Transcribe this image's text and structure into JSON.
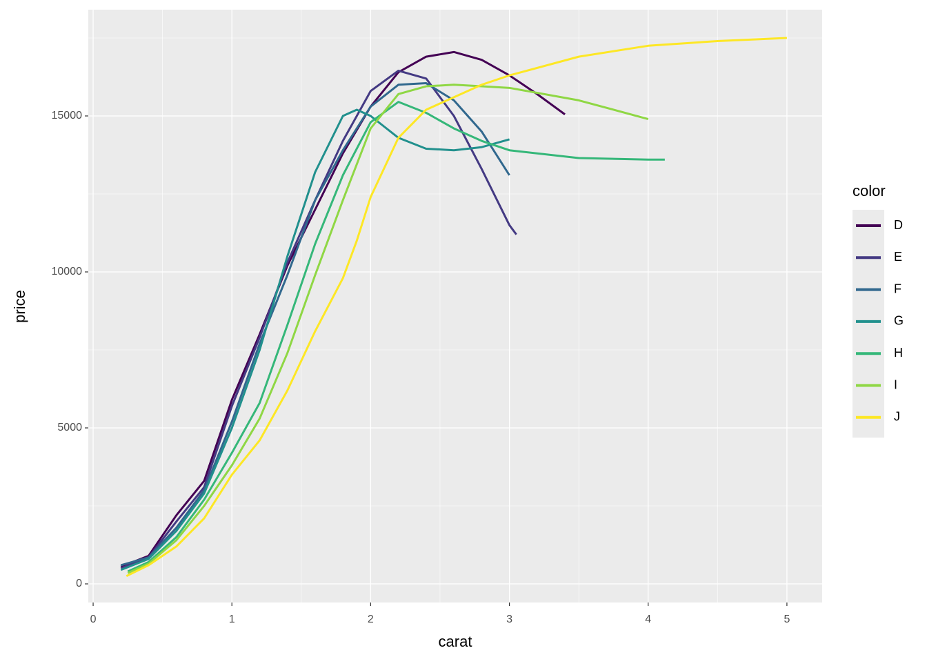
{
  "chart_data": {
    "type": "line",
    "x_label": "carat",
    "y_label": "price",
    "legend_title": "color",
    "legend_position": "right",
    "grid": true,
    "panel_color": "#ebebeb",
    "xlim": [
      -0.035,
      5.254
    ],
    "ylim": [
      -597,
      18407
    ],
    "xticks": [
      0,
      1,
      2,
      3,
      4,
      5
    ],
    "yticks": [
      0,
      5000,
      10000,
      15000
    ],
    "x_minor_ticks": [
      0.5,
      1.5,
      2.5,
      3.5,
      4.5
    ],
    "y_minor_ticks": [
      2500,
      7500,
      12500,
      17500
    ],
    "series": [
      {
        "name": "D",
        "color": "#440154",
        "x": [
          0.2,
          0.4,
          0.6,
          0.8,
          1.0,
          1.2,
          1.4,
          1.6,
          1.8,
          2.0,
          2.2,
          2.4,
          2.6,
          2.8,
          3.0,
          3.2,
          3.4
        ],
        "values": [
          550,
          900,
          2200,
          3300,
          5900,
          8000,
          10200,
          12000,
          13800,
          15300,
          16400,
          16900,
          17050,
          16800,
          16300,
          15700,
          15050
        ]
      },
      {
        "name": "E",
        "color": "#443a83",
        "x": [
          0.2,
          0.4,
          0.6,
          0.8,
          1.0,
          1.2,
          1.4,
          1.6,
          1.8,
          2.0,
          2.2,
          2.4,
          2.6,
          2.8,
          3.0,
          3.05
        ],
        "values": [
          500,
          850,
          2000,
          3100,
          5700,
          7900,
          10300,
          12300,
          14200,
          15800,
          16450,
          16200,
          15000,
          13300,
          11500,
          11200
        ]
      },
      {
        "name": "F",
        "color": "#31688e",
        "x": [
          0.2,
          0.4,
          0.6,
          0.8,
          1.0,
          1.2,
          1.4,
          1.6,
          1.8,
          2.0,
          2.2,
          2.4,
          2.6,
          2.8,
          3.0
        ],
        "values": [
          600,
          850,
          1800,
          3000,
          5200,
          7700,
          9900,
          12300,
          13900,
          15300,
          16000,
          16050,
          15500,
          14500,
          13100
        ]
      },
      {
        "name": "G",
        "color": "#21908d",
        "x": [
          0.2,
          0.4,
          0.6,
          0.8,
          1.0,
          1.2,
          1.4,
          1.6,
          1.8,
          1.9,
          2.0,
          2.2,
          2.4,
          2.6,
          2.8,
          3.0
        ],
        "values": [
          450,
          800,
          1700,
          2900,
          5000,
          7500,
          10500,
          13200,
          15000,
          15200,
          15000,
          14300,
          13950,
          13900,
          14000,
          14250
        ]
      },
      {
        "name": "H",
        "color": "#35b779",
        "x": [
          0.25,
          0.4,
          0.6,
          0.8,
          1.0,
          1.2,
          1.4,
          1.6,
          1.8,
          2.0,
          2.2,
          2.4,
          2.6,
          2.8,
          3.0,
          3.5,
          4.0,
          4.12
        ],
        "values": [
          400,
          700,
          1500,
          2700,
          4200,
          5800,
          8300,
          10900,
          13100,
          14800,
          15450,
          15100,
          14600,
          14200,
          13900,
          13650,
          13600,
          13600
        ]
      },
      {
        "name": "I",
        "color": "#8fd744",
        "x": [
          0.25,
          0.4,
          0.6,
          0.8,
          1.0,
          1.2,
          1.4,
          1.6,
          1.8,
          2.0,
          2.2,
          2.4,
          2.6,
          2.8,
          3.0,
          3.5,
          4.0
        ],
        "values": [
          350,
          650,
          1400,
          2500,
          3800,
          5300,
          7400,
          9900,
          12300,
          14600,
          15700,
          15950,
          16000,
          15950,
          15900,
          15500,
          14900
        ]
      },
      {
        "name": "J",
        "color": "#fde725",
        "x": [
          0.24,
          0.4,
          0.6,
          0.8,
          1.0,
          1.2,
          1.4,
          1.6,
          1.8,
          1.9,
          2.0,
          2.2,
          2.4,
          2.6,
          2.8,
          3.0,
          3.5,
          4.0,
          4.5,
          5.0
        ],
        "values": [
          250,
          600,
          1200,
          2100,
          3500,
          4600,
          6200,
          8100,
          9800,
          11000,
          12400,
          14300,
          15200,
          15600,
          16000,
          16300,
          16900,
          17250,
          17400,
          17500
        ]
      }
    ]
  }
}
